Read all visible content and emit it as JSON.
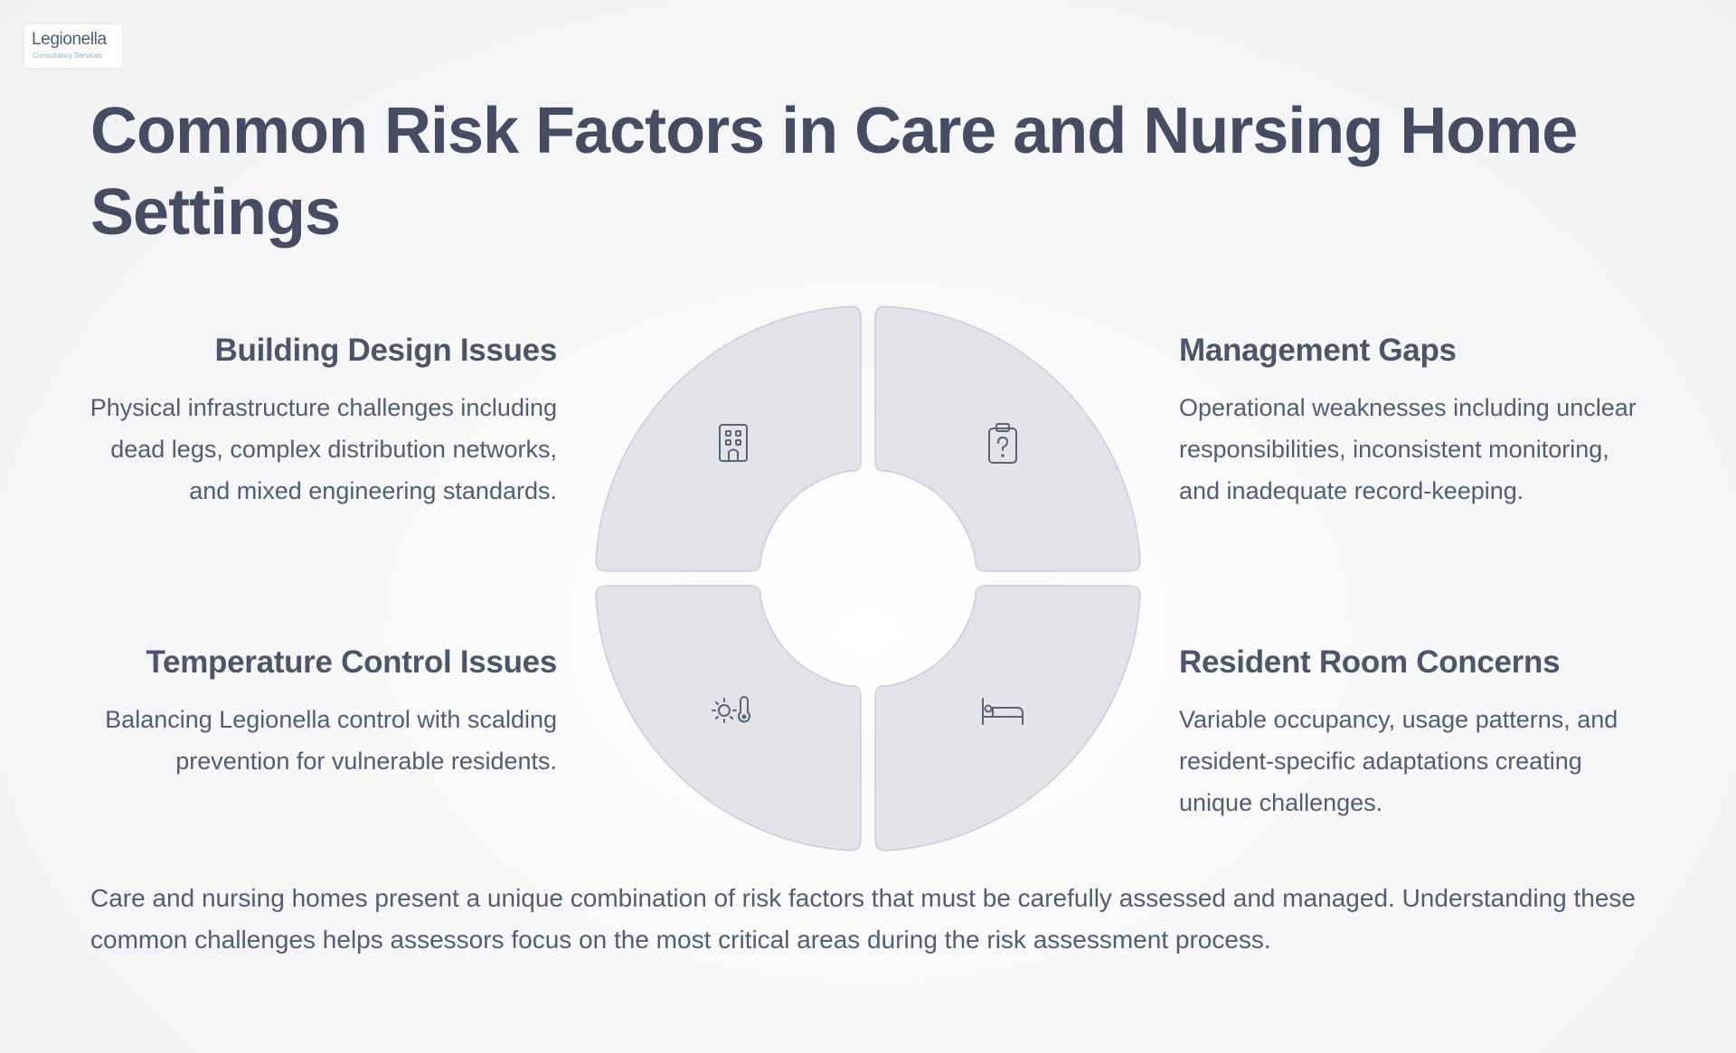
{
  "logo": {
    "name": "Legionella",
    "tagline": "Consultancy Services"
  },
  "title": "Common Risk Factors in Care and Nursing Home Settings",
  "items": {
    "building": {
      "title": "Building Design Issues",
      "text": "Physical infrastructure challenges including dead legs, complex distribution networks, and mixed engineering standards.",
      "icon": "building-icon"
    },
    "management": {
      "title": "Management Gaps",
      "text": "Operational weaknesses including unclear responsibilities, inconsistent monitoring, and inadequate record-keeping.",
      "icon": "clipboard-question-icon"
    },
    "temperature": {
      "title": "Temperature Control Issues",
      "text": "Balancing Legionella control with scalding prevention for vulnerable residents.",
      "icon": "sun-thermometer-icon"
    },
    "resident": {
      "title": "Resident Room Concerns",
      "text": "Variable occupancy, usage patterns, and resident-specific adaptations creating unique challenges.",
      "icon": "bed-icon"
    }
  },
  "footer": "Care and nursing homes present a unique combination of risk factors that must be carefully assessed and managed. Understanding these common challenges helps assessors focus on the most critical areas during the risk assessment process.",
  "colors": {
    "segment_fill": "#e3e3e8",
    "segment_stroke": "#cdcdd4",
    "icon_stroke": "#5c6176",
    "heading": "#474c62"
  }
}
